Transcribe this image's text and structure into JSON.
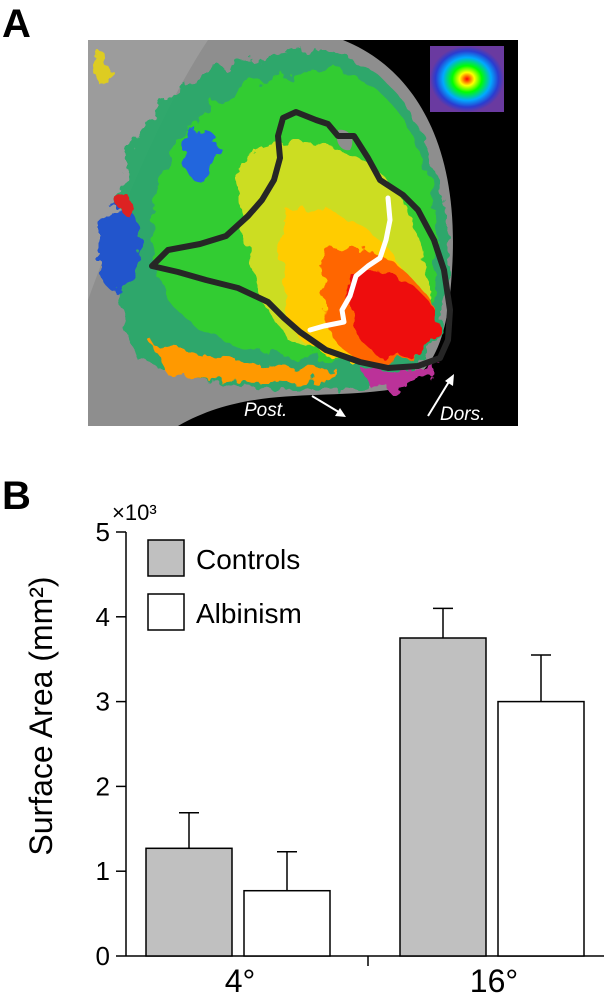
{
  "panels": {
    "a_label": "A",
    "b_label": "B"
  },
  "brain_map": {
    "annotations": {
      "post": "Post.",
      "dors": "Dors."
    },
    "colors": {
      "background": "#000000",
      "cortex_gray": "#8c8c8c",
      "roi_outline": "#262626",
      "boundary_line": "#ffffff"
    }
  },
  "chart_data": {
    "type": "bar",
    "categories": [
      "4°",
      "16°"
    ],
    "series": [
      {
        "name": "Controls",
        "values": [
          1.27,
          3.75
        ],
        "errors": [
          0.42,
          0.35
        ],
        "color": "#c0c0c0"
      },
      {
        "name": "Albinism",
        "values": [
          0.77,
          3.0
        ],
        "errors": [
          0.46,
          0.55
        ],
        "color": "#ffffff"
      }
    ],
    "ylabel": "Surface Area (mm²)",
    "y_multiplier": "×10³",
    "ylim": [
      0,
      5
    ],
    "yticks": [
      0,
      1,
      2,
      3,
      4,
      5
    ],
    "grid": false,
    "legend_position": "top-left"
  }
}
